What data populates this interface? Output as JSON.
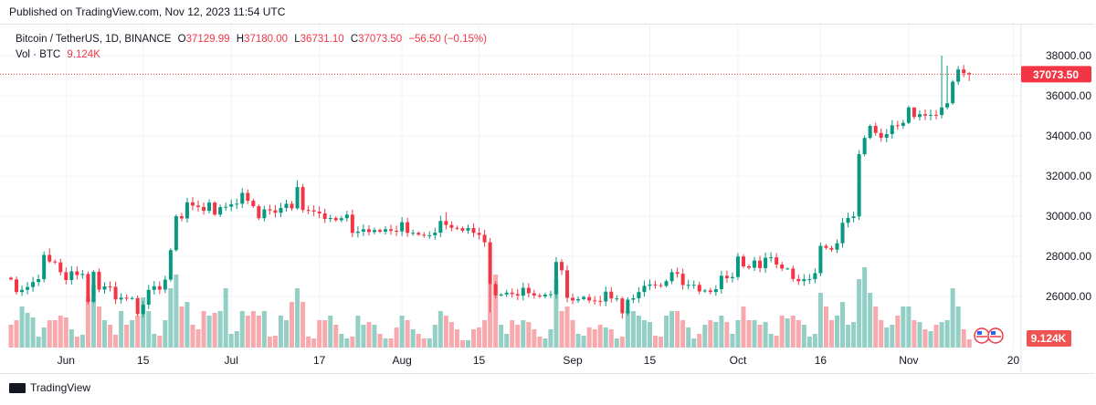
{
  "published": "Published on TradingView.com, Nov 12, 2023 11:54 UTC",
  "legend": {
    "symbol": "Bitcoin / TetherUS, 1D, BINANCE",
    "o_label": "O",
    "o": "37129.99",
    "h_label": "H",
    "h": "37180.00",
    "l_label": "L",
    "l": "36731.10",
    "c_label": "C",
    "c": "37073.50",
    "change": "−56.50 (−0.15%)",
    "vol_label": "Vol · BTC",
    "vol": "9.124K"
  },
  "footer": {
    "brand": "TradingView"
  },
  "colors": {
    "up": "#089981",
    "down": "#F23645",
    "vol_up": "#94cfc5",
    "vol_down": "#f7a9ad",
    "last_price": "#F23645",
    "vol_badge": "#EF5350"
  },
  "chart_data": {
    "type": "candlestick",
    "first_date": "2023-05-22",
    "first_open": 26930,
    "close": [
      26850,
      26220,
      26330,
      26470,
      26720,
      26860,
      28070,
      27740,
      27700,
      27210,
      26820,
      27250,
      27070,
      27120,
      25730,
      27230,
      26340,
      26500,
      26480,
      25850,
      25940,
      25910,
      25920,
      25120,
      25590,
      26330,
      26510,
      26340,
      26840,
      28310,
      30000,
      29890,
      30690,
      30530,
      30460,
      30270,
      30680,
      30080,
      30450,
      30470,
      30590,
      30620,
      31160,
      30770,
      30500,
      29900,
      30340,
      30290,
      30170,
      30410,
      30620,
      30390,
      31450,
      30310,
      30290,
      30230,
      30140,
      29860,
      29910,
      29800,
      29900,
      30080,
      29170,
      29230,
      29350,
      29210,
      29310,
      29230,
      29350,
      29270,
      29240,
      29700,
      29170,
      29170,
      29080,
      29040,
      29050,
      29180,
      29760,
      29560,
      29420,
      29400,
      29280,
      29410,
      29170,
      29070,
      28700,
      26620,
      26050,
      26100,
      26190,
      26120,
      26040,
      26430,
      26160,
      26050,
      26000,
      26090,
      26110,
      27720,
      27300,
      25930,
      25800,
      25870,
      25970,
      25800,
      25780,
      25750,
      26240,
      25900,
      25900,
      25160,
      25840,
      25910,
      26220,
      26530,
      26600,
      26560,
      26530,
      26760,
      27210,
      27130,
      26570,
      26580,
      26580,
      26250,
      26300,
      26220,
      26360,
      27030,
      26910,
      26970,
      27990,
      27500,
      27430,
      27790,
      27410,
      27930,
      27950,
      27590,
      27390,
      27390,
      26870,
      26760,
      26860,
      26860,
      27160,
      28520,
      28420,
      28330,
      28650,
      29670,
      29910,
      29990,
      33090,
      33900,
      34500,
      34150,
      33910,
      34090,
      34530,
      34500,
      34650,
      35420,
      34940,
      35080,
      35010,
      35050,
      35040,
      35420,
      35630,
      36700,
      37310,
      37130,
      37073.5
    ],
    "volume_k": [
      25,
      30,
      45,
      38,
      33,
      12,
      22,
      30,
      30,
      35,
      33,
      20,
      12,
      14,
      55,
      68,
      45,
      30,
      25,
      14,
      40,
      25,
      30,
      35,
      55,
      40,
      15,
      13,
      30,
      65,
      80,
      45,
      50,
      25,
      20,
      40,
      35,
      38,
      40,
      65,
      15,
      18,
      40,
      35,
      40,
      35,
      40,
      12,
      13,
      35,
      30,
      50,
      65,
      50,
      12,
      10,
      30,
      30,
      35,
      25,
      15,
      10,
      12,
      35,
      25,
      28,
      25,
      15,
      10,
      10,
      22,
      35,
      30,
      20,
      15,
      10,
      10,
      25,
      40,
      35,
      28,
      20,
      8,
      8,
      20,
      22,
      30,
      70,
      80,
      25,
      15,
      30,
      25,
      30,
      28,
      20,
      12,
      10,
      20,
      75,
      40,
      45,
      30,
      15,
      13,
      22,
      20,
      25,
      22,
      20,
      10,
      12,
      40,
      40,
      35,
      30,
      28,
      13,
      12,
      35,
      40,
      40,
      30,
      22,
      10,
      15,
      25,
      30,
      28,
      35,
      28,
      15,
      30,
      45,
      30,
      30,
      25,
      28,
      15,
      13,
      35,
      32,
      35,
      30,
      25,
      12,
      15,
      60,
      45,
      30,
      35,
      50,
      25,
      28,
      75,
      88,
      60,
      45,
      30,
      22,
      25,
      35,
      45,
      45,
      30,
      28,
      20,
      18,
      25,
      28,
      30,
      65,
      45,
      20,
      9.124
    ],
    "notable_highs": {
      "7": 28400,
      "29": 28400,
      "52": 31800,
      "79": 30200,
      "100": 27850,
      "164": 35300,
      "169": 38000,
      "170": 37500,
      "174": 37180
    },
    "notable_lows": {
      "87": 25200,
      "111": 24900,
      "174": 36731.1
    },
    "y_ticks": [
      "38000.00",
      "36000.00",
      "34000.00",
      "32000.00",
      "30000.00",
      "28000.00",
      "26000.00"
    ],
    "y_tick_values": [
      38000,
      36000,
      34000,
      32000,
      30000,
      28000,
      26000
    ],
    "ylim": [
      24600,
      38700
    ],
    "x_ticks": [
      {
        "label": "Jun",
        "day": 10
      },
      {
        "label": "15",
        "day": 24
      },
      {
        "label": "Jul",
        "day": 40
      },
      {
        "label": "17",
        "day": 56
      },
      {
        "label": "Aug",
        "day": 71
      },
      {
        "label": "15",
        "day": 85
      },
      {
        "label": "Sep",
        "day": 102
      },
      {
        "label": "15",
        "day": 116
      },
      {
        "label": "Oct",
        "day": 132
      },
      {
        "label": "16",
        "day": 147
      },
      {
        "label": "Nov",
        "day": 163
      },
      {
        "label": "20",
        "day": 182
      }
    ],
    "last_price": "37073.50",
    "last_volume": "9.124K"
  }
}
